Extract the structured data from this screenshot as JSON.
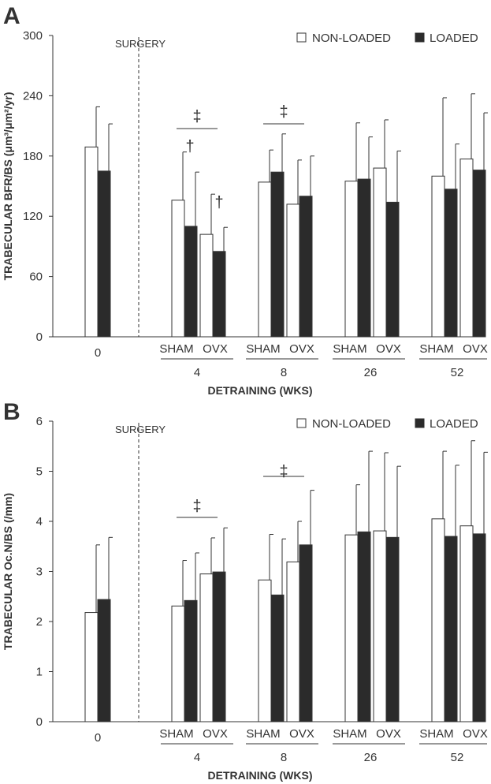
{
  "chart_data": [
    {
      "type": "bar",
      "panel_label": "A",
      "ylabel": "TRABECULAR BFR/BS (μm³/μm²/yr)",
      "xlabel": "DETRAINING (WKS)",
      "ylim": [
        0,
        300
      ],
      "yticks": [
        "0",
        "60",
        "120",
        "180",
        "240",
        "300"
      ],
      "grid": false,
      "legend_position": "top-right",
      "legend": [
        "NON-LOADED",
        "LOADED"
      ],
      "surgery_label": "SURGERY",
      "group_labels": [
        "0",
        "4",
        "8",
        "26",
        "52"
      ],
      "subgroup_labels": [
        "SHAM",
        "OVX"
      ],
      "series": [
        {
          "name": "NON-LOADED",
          "color": "#ffffff",
          "values": [
            189,
            136,
            102,
            154,
            132,
            155,
            168,
            160,
            177
          ],
          "errors": [
            40,
            48,
            40,
            32,
            44,
            58,
            48,
            78,
            65
          ]
        },
        {
          "name": "LOADED",
          "color": "#2b2b2b",
          "values": [
            165,
            110,
            85,
            164,
            140,
            157,
            134,
            147,
            166
          ],
          "errors": [
            47,
            54,
            24,
            38,
            40,
            42,
            51,
            45,
            57
          ]
        }
      ],
      "annotations": [
        {
          "text": "‡",
          "group": "4"
        },
        {
          "text": "‡",
          "group": "8"
        },
        {
          "text": "†",
          "bar": "4 SHAM LOADED"
        },
        {
          "text": "†",
          "bar": "4 OVX LOADED"
        }
      ]
    },
    {
      "type": "bar",
      "panel_label": "B",
      "ylabel": "TRABECULAR Oc.N/BS (/mm)",
      "xlabel": "DETRAINING (WKS)",
      "ylim": [
        0,
        6
      ],
      "yticks": [
        "0",
        "1",
        "2",
        "3",
        "4",
        "5",
        "6"
      ],
      "grid": false,
      "legend_position": "top-right",
      "legend": [
        "NON-LOADED",
        "LOADED"
      ],
      "surgery_label": "SURGERY",
      "group_labels": [
        "0",
        "4",
        "8",
        "26",
        "52"
      ],
      "subgroup_labels": [
        "SHAM",
        "OVX"
      ],
      "series": [
        {
          "name": "NON-LOADED",
          "color": "#ffffff",
          "values": [
            2.18,
            2.31,
            2.95,
            2.83,
            3.19,
            3.73,
            3.81,
            4.05,
            3.91
          ],
          "errors": [
            1.35,
            0.91,
            0.72,
            0.91,
            0.81,
            1.0,
            1.56,
            1.35,
            1.7
          ]
        },
        {
          "name": "LOADED",
          "color": "#2b2b2b",
          "values": [
            2.44,
            2.42,
            2.99,
            2.53,
            3.53,
            3.79,
            3.68,
            3.7,
            3.75
          ],
          "errors": [
            1.24,
            0.95,
            0.88,
            1.12,
            1.09,
            1.61,
            1.42,
            1.42,
            1.63
          ]
        }
      ],
      "annotations": [
        {
          "text": "‡",
          "group": "4"
        },
        {
          "text": "‡",
          "group": "8"
        }
      ]
    }
  ]
}
